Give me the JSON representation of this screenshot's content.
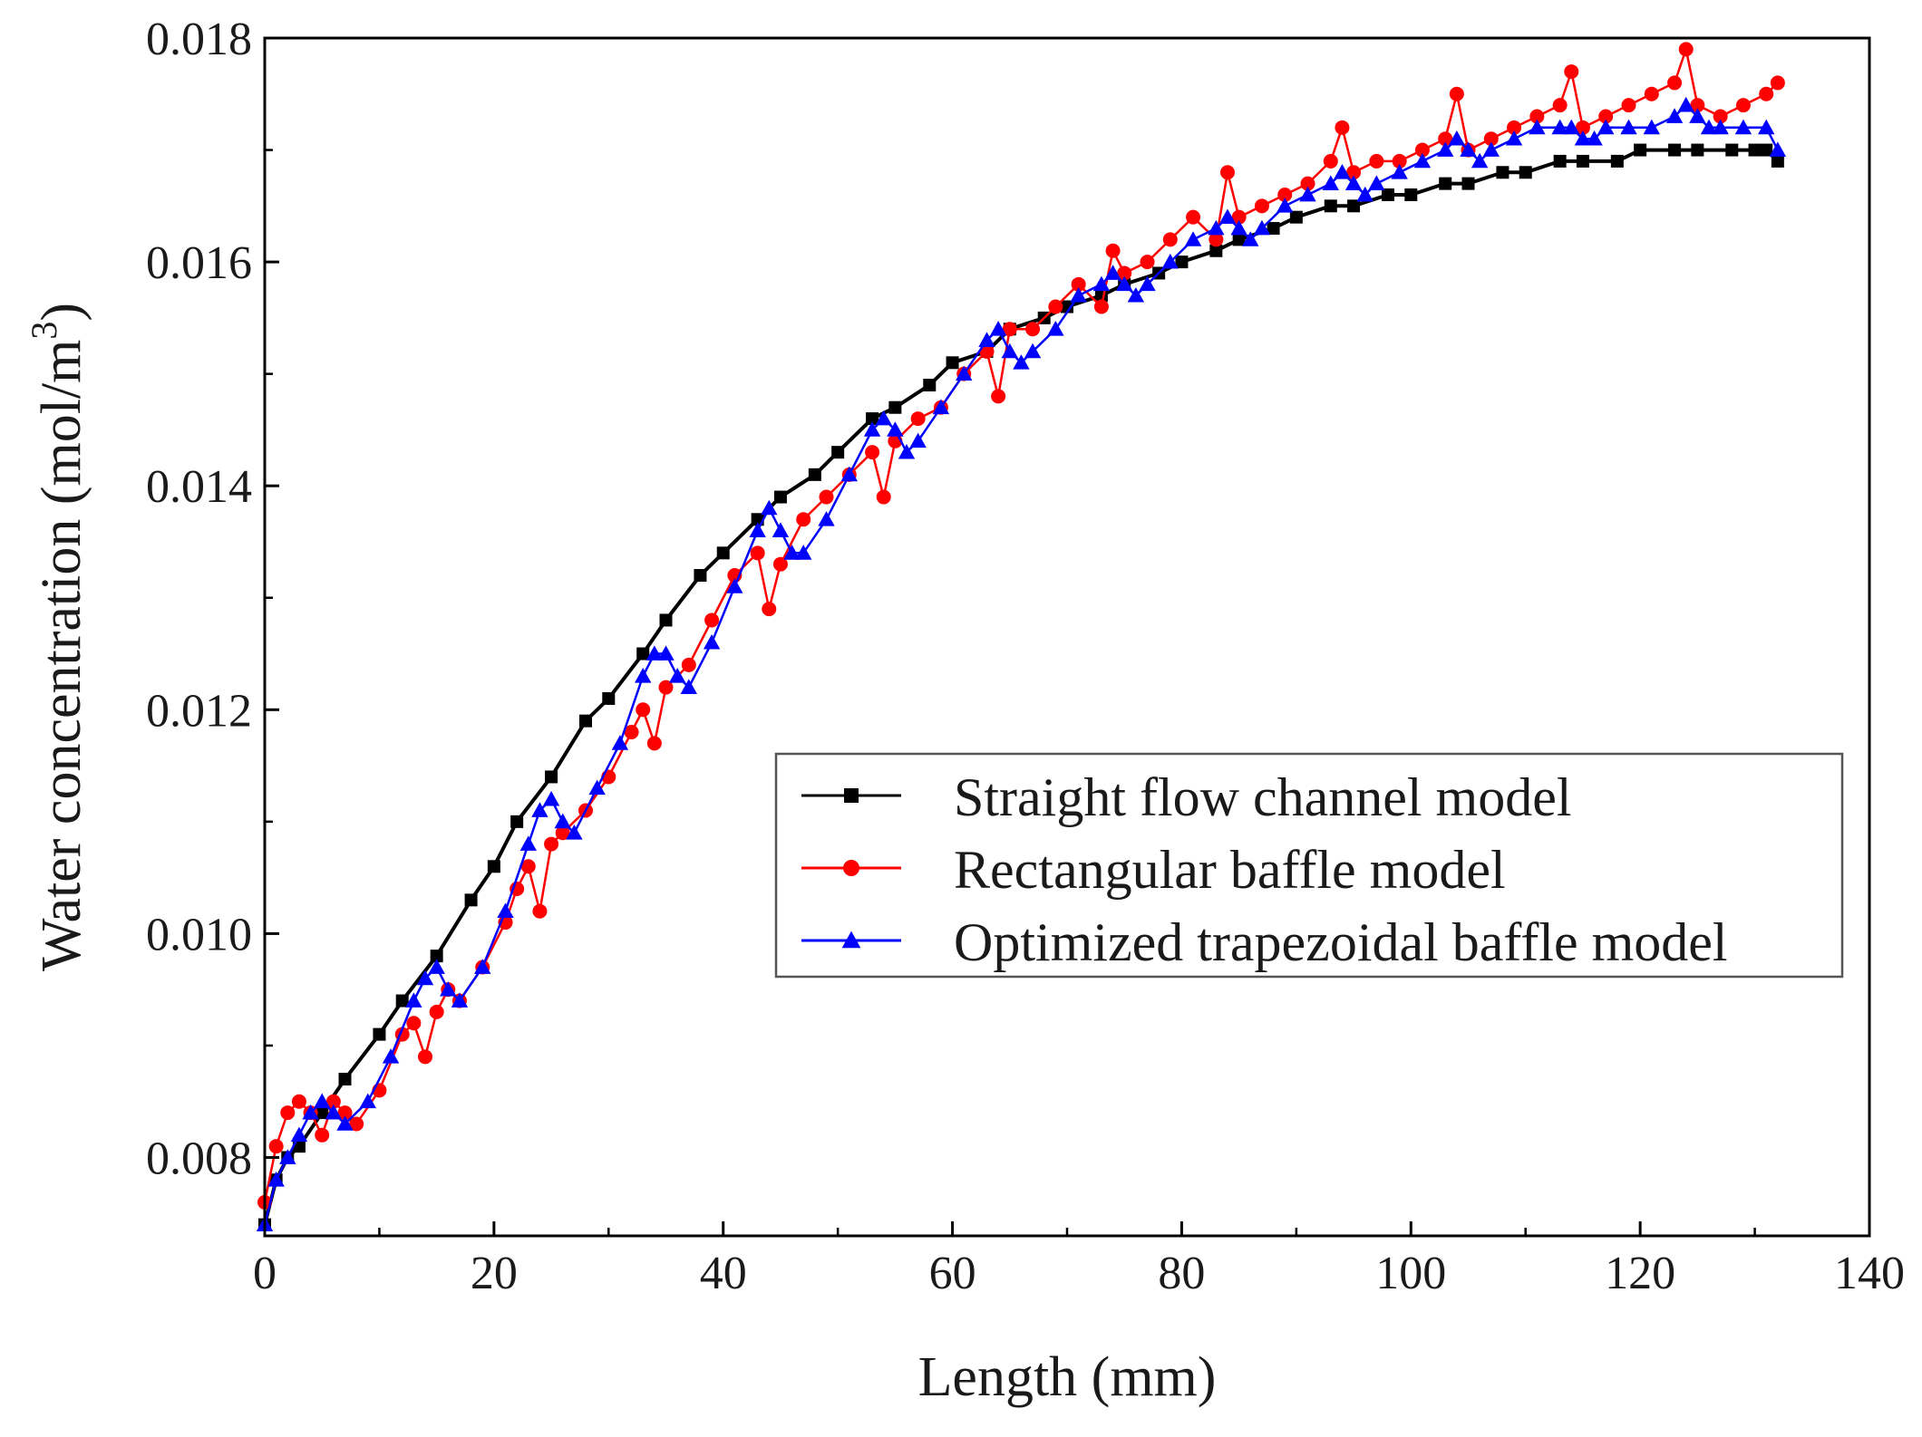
{
  "chart_data": {
    "type": "line",
    "title": "",
    "xlabel": "Length (mm)",
    "ylabel_main": "Water concentration (mol/m",
    "ylabel_sup": "3",
    "ylabel_close": ")",
    "xlim": [
      0,
      140
    ],
    "ylim": [
      0.0073,
      0.018
    ],
    "x_ticks": [
      0,
      20,
      40,
      60,
      80,
      100,
      120,
      140
    ],
    "x_tick_labels": [
      "0",
      "20",
      "40",
      "60",
      "80",
      "100",
      "120",
      "140"
    ],
    "y_ticks": [
      0.008,
      0.01,
      0.012,
      0.014,
      0.016,
      0.018
    ],
    "y_tick_labels": [
      "0.008",
      "0.010",
      "0.012",
      "0.014",
      "0.016",
      "0.018"
    ],
    "legend_position": "center-right",
    "series": [
      {
        "name": "Straight flow channel model",
        "color": "#000000",
        "marker": "square",
        "x": [
          0,
          1,
          2,
          3,
          5,
          7,
          10,
          12,
          15,
          18,
          20,
          22,
          25,
          28,
          30,
          33,
          35,
          38,
          40,
          43,
          45,
          48,
          50,
          53,
          55,
          58,
          60,
          63,
          65,
          68,
          70,
          73,
          75,
          78,
          80,
          83,
          85,
          88,
          90,
          93,
          95,
          98,
          100,
          103,
          105,
          108,
          110,
          113,
          115,
          118,
          120,
          123,
          125,
          128,
          130,
          131,
          132
        ],
        "y": [
          0.0074,
          0.0078,
          0.008,
          0.0081,
          0.0084,
          0.0087,
          0.0091,
          0.0094,
          0.0098,
          0.0103,
          0.0106,
          0.011,
          0.0114,
          0.0119,
          0.0121,
          0.0125,
          0.0128,
          0.0132,
          0.0134,
          0.0137,
          0.0139,
          0.0141,
          0.0143,
          0.0146,
          0.0147,
          0.0149,
          0.0151,
          0.0152,
          0.0154,
          0.0155,
          0.0156,
          0.0157,
          0.0158,
          0.0159,
          0.016,
          0.0161,
          0.0162,
          0.0163,
          0.0164,
          0.0165,
          0.0165,
          0.0166,
          0.0166,
          0.0167,
          0.0167,
          0.0168,
          0.0168,
          0.0169,
          0.0169,
          0.0169,
          0.017,
          0.017,
          0.017,
          0.017,
          0.017,
          0.017,
          0.0169
        ]
      },
      {
        "name": "Rectangular baffle model",
        "color": "#ff0000",
        "marker": "circle",
        "x": [
          0,
          1,
          2,
          3,
          4,
          5,
          6,
          7,
          8,
          10,
          12,
          13,
          14,
          15,
          16,
          17,
          19,
          21,
          22,
          23,
          24,
          25,
          26,
          28,
          30,
          32,
          33,
          34,
          35,
          37,
          39,
          41,
          43,
          44,
          45,
          47,
          49,
          51,
          53,
          54,
          55,
          57,
          59,
          61,
          63,
          64,
          65,
          67,
          69,
          71,
          73,
          74,
          75,
          77,
          79,
          81,
          83,
          84,
          85,
          87,
          89,
          91,
          93,
          94,
          95,
          97,
          99,
          101,
          103,
          104,
          105,
          107,
          109,
          111,
          113,
          114,
          115,
          117,
          119,
          121,
          123,
          124,
          125,
          127,
          129,
          131,
          132
        ],
        "y": [
          0.0076,
          0.0081,
          0.0084,
          0.0085,
          0.0084,
          0.0082,
          0.0085,
          0.0084,
          0.0083,
          0.0086,
          0.0091,
          0.0092,
          0.0089,
          0.0093,
          0.0095,
          0.0094,
          0.0097,
          0.0101,
          0.0104,
          0.0106,
          0.0102,
          0.0108,
          0.0109,
          0.0111,
          0.0114,
          0.0118,
          0.012,
          0.0117,
          0.0122,
          0.0124,
          0.0128,
          0.0132,
          0.0134,
          0.0129,
          0.0133,
          0.0137,
          0.0139,
          0.0141,
          0.0143,
          0.0139,
          0.0144,
          0.0146,
          0.0147,
          0.015,
          0.0152,
          0.0148,
          0.0154,
          0.0154,
          0.0156,
          0.0158,
          0.0156,
          0.0161,
          0.0159,
          0.016,
          0.0162,
          0.0164,
          0.0162,
          0.0168,
          0.0164,
          0.0165,
          0.0166,
          0.0167,
          0.0169,
          0.0172,
          0.0168,
          0.0169,
          0.0169,
          0.017,
          0.0171,
          0.0175,
          0.017,
          0.0171,
          0.0172,
          0.0173,
          0.0174,
          0.0177,
          0.0172,
          0.0173,
          0.0174,
          0.0175,
          0.0176,
          0.0179,
          0.0174,
          0.0173,
          0.0174,
          0.0175,
          0.0176
        ]
      },
      {
        "name": "Optimized trapezoidal baffle model",
        "color": "#0000ff",
        "marker": "triangle",
        "x": [
          0,
          1,
          2,
          3,
          4,
          5,
          6,
          7,
          9,
          11,
          13,
          14,
          15,
          16,
          17,
          19,
          21,
          23,
          24,
          25,
          26,
          27,
          29,
          31,
          33,
          34,
          35,
          36,
          37,
          39,
          41,
          43,
          44,
          45,
          46,
          47,
          49,
          51,
          53,
          54,
          55,
          56,
          57,
          59,
          61,
          63,
          64,
          65,
          66,
          67,
          69,
          71,
          73,
          74,
          75,
          76,
          77,
          79,
          81,
          83,
          84,
          85,
          86,
          87,
          89,
          91,
          93,
          94,
          95,
          96,
          97,
          99,
          101,
          103,
          104,
          105,
          106,
          107,
          109,
          111,
          113,
          114,
          115,
          116,
          117,
          119,
          121,
          123,
          124,
          125,
          126,
          127,
          129,
          131,
          132
        ],
        "y": [
          0.0074,
          0.0078,
          0.008,
          0.0082,
          0.0084,
          0.0085,
          0.0084,
          0.0083,
          0.0085,
          0.0089,
          0.0094,
          0.0096,
          0.0097,
          0.0095,
          0.0094,
          0.0097,
          0.0102,
          0.0108,
          0.0111,
          0.0112,
          0.011,
          0.0109,
          0.0113,
          0.0117,
          0.0123,
          0.0125,
          0.0125,
          0.0123,
          0.0122,
          0.0126,
          0.0131,
          0.0136,
          0.0138,
          0.0136,
          0.0134,
          0.0134,
          0.0137,
          0.0141,
          0.0145,
          0.0146,
          0.0145,
          0.0143,
          0.0144,
          0.0147,
          0.015,
          0.0153,
          0.0154,
          0.0152,
          0.0151,
          0.0152,
          0.0154,
          0.0157,
          0.0158,
          0.0159,
          0.0158,
          0.0157,
          0.0158,
          0.016,
          0.0162,
          0.0163,
          0.0164,
          0.0163,
          0.0162,
          0.0163,
          0.0165,
          0.0166,
          0.0167,
          0.0168,
          0.0167,
          0.0166,
          0.0167,
          0.0168,
          0.0169,
          0.017,
          0.0171,
          0.017,
          0.0169,
          0.017,
          0.0171,
          0.0172,
          0.0172,
          0.0172,
          0.0171,
          0.0171,
          0.0172,
          0.0172,
          0.0172,
          0.0173,
          0.0174,
          0.0173,
          0.0172,
          0.0172,
          0.0172,
          0.0172,
          0.017
        ]
      }
    ]
  }
}
